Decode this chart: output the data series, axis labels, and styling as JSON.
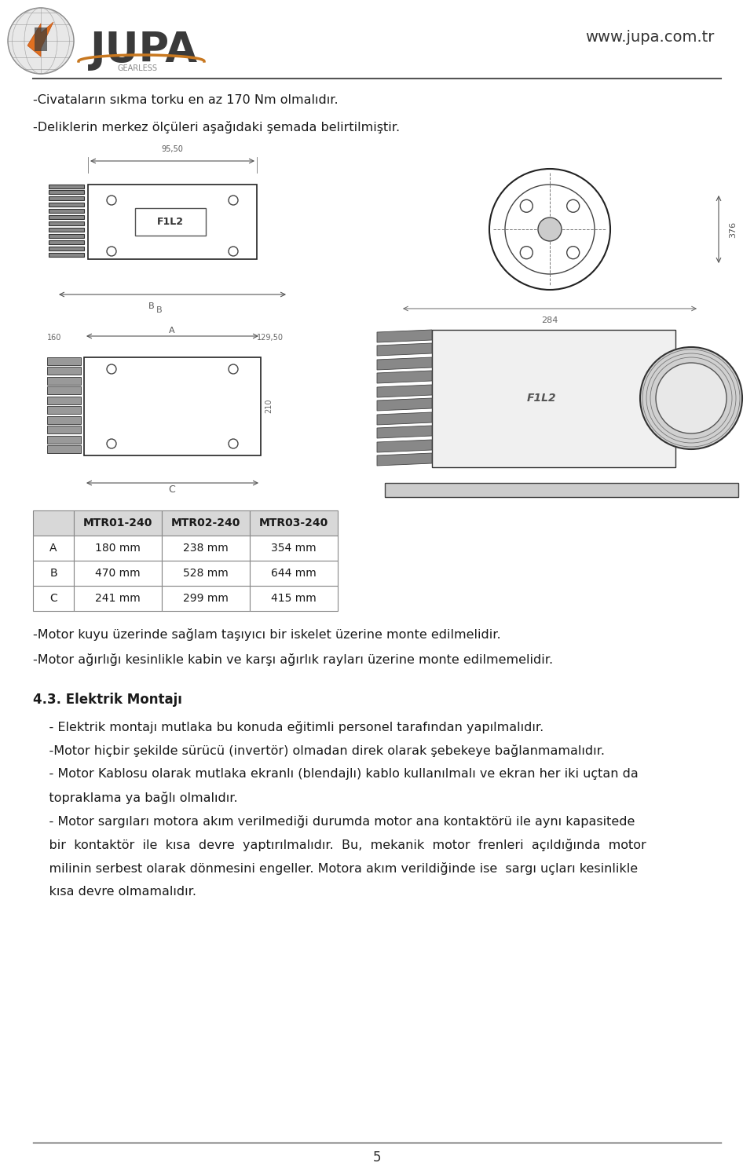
{
  "page_width": 9.6,
  "page_height": 14.95,
  "background_color": "#ffffff",
  "website": "www.jupa.com.tr",
  "page_number": "5",
  "bullet_lines_top": [
    "-Civataların sıkma torku en az 170 Nm olmalıdır.",
    "-Deliklerin merkez ölçüleri aşağıdaki şemada belirtilmiştir."
  ],
  "table_header": [
    "",
    "MTR01-240",
    "MTR02-240",
    "MTR03-240"
  ],
  "table_rows": [
    [
      "A",
      "180 mm",
      "238 mm",
      "354 mm"
    ],
    [
      "B",
      "470 mm",
      "528 mm",
      "644 mm"
    ],
    [
      "C",
      "241 mm",
      "299 mm",
      "415 mm"
    ]
  ],
  "bullet_lines_after_table": [
    "-Motor kuyu üzerinde sağlam taşıyıcı bir iskelet üzerine monte edilmelidir.",
    "-Motor ağırlığı kesinlikle kabin ve karşı ağırlık rayları üzerine monte edilmemelidir."
  ],
  "section_title": "4.3. Elektrik Montajı",
  "section_bullets": [
    "    - Elektrik montajı mutlaka bu konuda eğitimli personel tarafından yapılmalıdır.",
    "    -Motor hiçbir şekilde sürücü (invertör) olmadan direk olarak şebekeye bağlanmamalıdır.",
    "    - Motor Kablosu olarak mutlaka ekranlı (blendajlı) kablo kullanılmalı ve ekran her iki uçtan da",
    "    topraklama ya bağlı olmalıdır.",
    "    - Motor sargıları motora akım verilmediği durumda motor ana kontaktörü ile aynı kapasitede",
    "    bir  kontaktör  ile  kısa  devre  yaptırılmalıdır.  Bu,  mekanik  motor  frenleri  açıldığında  motor",
    "    milinin serbest olarak dönmesini engeller. Motora akım verildiğinde ise  sargı uçları kesinlikle",
    "    kısa devre olmamalıdır."
  ]
}
